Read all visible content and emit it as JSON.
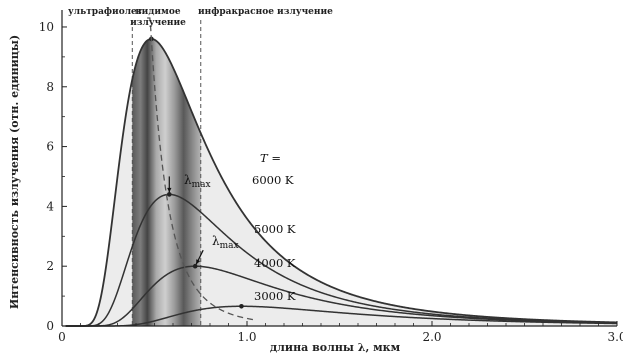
{
  "chart_data": {
    "type": "line",
    "title": "",
    "xlabel": "длина волны  λ, мкм",
    "ylabel": "Интенсивность излучения (отн. единицы)",
    "xlim": [
      0,
      3.0
    ],
    "ylim": [
      0,
      10.3
    ],
    "x_ticks": [
      0,
      1.0,
      2.0,
      3.0
    ],
    "x_tick_labels": [
      "0",
      "1.0",
      "2.0",
      "3.0"
    ],
    "y_ticks": [
      0,
      2,
      4,
      6,
      8,
      10
    ],
    "y_tick_labels": [
      "0",
      "2",
      "4",
      "6",
      "8",
      "10"
    ],
    "grid": false,
    "legend_title": "T =",
    "series": [
      {
        "name": "6000 K",
        "temperature": 6000,
        "peak_x": 0.483,
        "peak_y": 9.6
      },
      {
        "name": "5000 K",
        "temperature": 5000,
        "peak_x": 0.58,
        "peak_y": 4.4
      },
      {
        "name": "4000 K",
        "temperature": 4000,
        "peak_x": 0.72,
        "peak_y": 2.0
      },
      {
        "name": "3000 K",
        "temperature": 3000,
        "peak_x": 0.97,
        "peak_y": 0.66
      }
    ],
    "lambda_max_curve": {
      "style": "dashed",
      "label": "λmax"
    },
    "bands": [
      {
        "label": "ультрафиолет",
        "x_from": 0.0,
        "x_to": 0.38
      },
      {
        "label": "видимое излучение",
        "x_from": 0.38,
        "x_to": 0.75
      },
      {
        "label": "инфракрасное излучение",
        "x_from": 0.75,
        "x_to": 3.0
      }
    ],
    "annotations": [
      {
        "text": "λmax",
        "series": "6000 K"
      },
      {
        "text": "λmax",
        "series": "5000 K"
      }
    ]
  }
}
